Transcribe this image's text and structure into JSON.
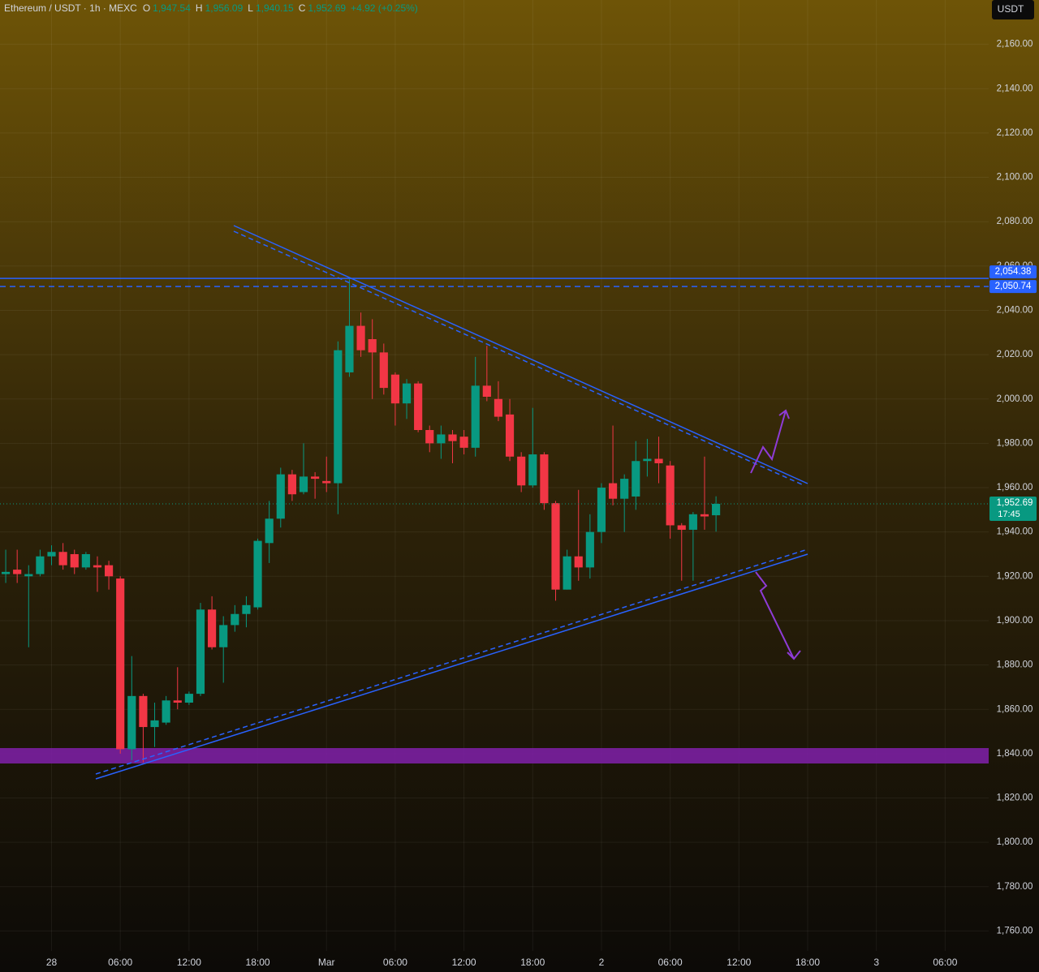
{
  "chart_data": {
    "type": "candlestick",
    "title": "Ethereum / USDT · 1h · MEXC",
    "ohlc_legend": [
      {
        "key": "O",
        "text": "1,947.54"
      },
      {
        "key": "H",
        "text": "1,956.09"
      },
      {
        "key": "L",
        "text": "1,940.15"
      },
      {
        "key": "C",
        "text": "1,952.69"
      }
    ],
    "change_text": "+4.92 (+0.25%)",
    "currency": "USDT",
    "up_color": "#089981",
    "down_color": "#f23645",
    "x": [
      -4,
      -3,
      -2,
      -1,
      0,
      1,
      2,
      3,
      4,
      5,
      6,
      7,
      8,
      9,
      10,
      11,
      12,
      13,
      14,
      15,
      16,
      17,
      18,
      19,
      20,
      21,
      22,
      23,
      24,
      25,
      26,
      27,
      28,
      29,
      30,
      31,
      32,
      33,
      34,
      35,
      36,
      37,
      38,
      39,
      40,
      41,
      42,
      43,
      44,
      45,
      46,
      47,
      48,
      49,
      50,
      51,
      52,
      53,
      54,
      55,
      56,
      57,
      58
    ],
    "open": [
      1921,
      1923,
      1920,
      1921,
      1929,
      1931,
      1930,
      1924,
      1925,
      1925,
      1919,
      1842,
      1866,
      1852,
      1854,
      1864,
      1863,
      1867,
      1905,
      1888,
      1898,
      1903,
      1906,
      1935,
      1946,
      1966,
      1958,
      1965,
      1963,
      1962,
      2012,
      2033,
      2027,
      2021,
      2011,
      1998,
      2007,
      1986,
      1980,
      1984,
      1983,
      1978,
      2006,
      2000,
      1993,
      1974,
      1961,
      1975,
      1953,
      1914,
      1929,
      1924,
      1940,
      1962,
      1955,
      1956,
      1972,
      1973,
      1970,
      1943,
      1941,
      1948,
      1947.54
    ],
    "high": [
      1932,
      1932,
      1925,
      1932,
      1934,
      1935,
      1932,
      1931,
      1929,
      1927,
      1920,
      1884,
      1867,
      1863,
      1866,
      1879,
      1868,
      1908,
      1911,
      1902,
      1907,
      1911,
      1937,
      1954,
      1969,
      1968,
      1980,
      1967,
      1974,
      2026,
      2054,
      2039,
      2036,
      2025,
      2012,
      2009,
      2008,
      1988,
      1988,
      1986,
      1986,
      2019,
      2024,
      2008,
      2000,
      1976,
      1996,
      1976,
      1954,
      1932,
      1959,
      1948,
      1962,
      1988,
      1966,
      1981,
      1982,
      1983,
      1972,
      1944,
      1949,
      1974,
      1956.09
    ],
    "low": [
      1917,
      1917,
      1888,
      1920,
      1925,
      1923,
      1921,
      1923,
      1913,
      1914,
      1840,
      1837,
      1836,
      1843,
      1853,
      1860,
      1862,
      1866,
      1887,
      1872,
      1895,
      1897,
      1905,
      1926,
      1942,
      1954,
      1957,
      1955,
      1958,
      1948,
      2010,
      2019,
      2000,
      2002,
      1988,
      1991,
      1985,
      1976,
      1973,
      1971,
      1975,
      1974,
      1999,
      1990,
      1972,
      1958,
      1960,
      1950,
      1909,
      1914,
      1918,
      1919,
      1935,
      1952,
      1940,
      1950,
      1965,
      1962,
      1937,
      1918,
      1918,
      1941,
      1940.15
    ],
    "close": [
      1922,
      1921,
      1921,
      1929,
      1931,
      1925,
      1924,
      1930,
      1924,
      1920,
      1842,
      1866,
      1852,
      1855,
      1864,
      1863,
      1867,
      1905,
      1888,
      1898,
      1903,
      1907,
      1936,
      1946,
      1966,
      1957,
      1965,
      1964,
      1962,
      2022,
      2033,
      2022,
      2021,
      2005,
      1998,
      2007,
      1986,
      1980,
      1984,
      1981,
      1978,
      2006,
      2001,
      1992,
      1974,
      1961,
      1975,
      1953,
      1914,
      1929,
      1924,
      1940,
      1960,
      1955,
      1964,
      1972,
      1973,
      1971,
      1943,
      1941,
      1948,
      1947,
      1952.69
    ],
    "xlim": [
      -4.5,
      81.8
    ],
    "xticks": [
      {
        "value": 0,
        "label": "28"
      },
      {
        "value": 6,
        "label": "06:00"
      },
      {
        "value": 12,
        "label": "12:00"
      },
      {
        "value": 18,
        "label": "18:00"
      },
      {
        "value": 24,
        "label": "Mar"
      },
      {
        "value": 30,
        "label": "06:00"
      },
      {
        "value": 36,
        "label": "12:00"
      },
      {
        "value": 42,
        "label": "18:00"
      },
      {
        "value": 48,
        "label": "2"
      },
      {
        "value": 54,
        "label": "06:00"
      },
      {
        "value": 60,
        "label": "12:00"
      },
      {
        "value": 66,
        "label": "18:00"
      },
      {
        "value": 72,
        "label": "3"
      },
      {
        "value": 78,
        "label": "06:00"
      }
    ],
    "ylim": [
      1751,
      2180
    ],
    "yticks": [
      {
        "value": 1760,
        "label": "1,760.00"
      },
      {
        "value": 1780,
        "label": "1,780.00"
      },
      {
        "value": 1800,
        "label": "1,800.00"
      },
      {
        "value": 1820,
        "label": "1,820.00"
      },
      {
        "value": 1840,
        "label": "1,840.00"
      },
      {
        "value": 1860,
        "label": "1,860.00"
      },
      {
        "value": 1880,
        "label": "1,880.00"
      },
      {
        "value": 1900,
        "label": "1,900.00"
      },
      {
        "value": 1920,
        "label": "1,920.00"
      },
      {
        "value": 1940,
        "label": "1,940.00"
      },
      {
        "value": 1960,
        "label": "1,960.00"
      },
      {
        "value": 1980,
        "label": "1,980.00"
      },
      {
        "value": 2000,
        "label": "2,000.00"
      },
      {
        "value": 2020,
        "label": "2,020.00"
      },
      {
        "value": 2040,
        "label": "2,040.00"
      },
      {
        "value": 2060,
        "label": "2,060.00"
      },
      {
        "value": 2080,
        "label": "2,080.00"
      },
      {
        "value": 2100,
        "label": "2,100.00"
      },
      {
        "value": 2120,
        "label": "2,120.00"
      },
      {
        "value": 2140,
        "label": "2,140.00"
      },
      {
        "value": 2160,
        "label": "2,160.00"
      }
    ],
    "grid": true,
    "price_lines": [
      {
        "value": 2054.38,
        "label": "2,054.38",
        "color": "#2962ff",
        "style": "solid"
      },
      {
        "value": 2050.74,
        "label": "2,050.74",
        "color": "#2962ff",
        "style": "dashed"
      }
    ],
    "last_price": {
      "value": 1952.69,
      "label": "1,952.69",
      "countdown": "17:45",
      "color": "#089981"
    }
  }
}
